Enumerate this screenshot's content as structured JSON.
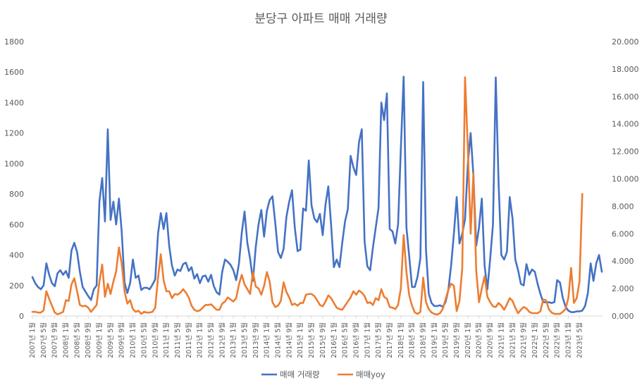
{
  "chart_data": {
    "type": "line",
    "title": "분당구 아파트 매매 거래량",
    "y_left": {
      "min": 0,
      "max": 1800,
      "step": 200,
      "tick_labels": [
        "0",
        "200",
        "400",
        "600",
        "800",
        "1000",
        "1200",
        "1400",
        "1600",
        "1800"
      ]
    },
    "y_right": {
      "min": 0,
      "max": 20,
      "step": 2,
      "tick_labels": [
        "0.000",
        "2.000",
        "4.000",
        "6.000",
        "8.000",
        "10.000",
        "12.000",
        "14.000",
        "16.000",
        "18.000",
        "20.000"
      ]
    },
    "grid": false,
    "legend_position": "bottom",
    "x_tick_labels": [
      "2007년 1월",
      "2007년 5월",
      "2007년 9월",
      "2008년 1월",
      "2008년 5월",
      "2008년 9월",
      "2009년 1월",
      "2009년 5월",
      "2009년 9월",
      "2010년 1월",
      "2010년 5월",
      "2010년 9월",
      "2011년 1월",
      "2011년 5월",
      "2011년 9월",
      "2012년 1월",
      "2012년 5월",
      "2012년 9월",
      "2013년 1월",
      "2013년 5월",
      "2013년 9월",
      "2014년 1월",
      "2014년 5월",
      "2014년 9월",
      "2015년 1월",
      "2015년 5월",
      "2015년 9월",
      "2016년 1월",
      "2016년 5월",
      "2016년 9월",
      "2017년 1월",
      "2017년 5월",
      "2017년 9월",
      "2018년 1월",
      "2018년 5월",
      "2018년 9월",
      "2019년 1월",
      "2019년 5월",
      "2019년 9월",
      "2020년 1월",
      "2020년 5월",
      "2020년 9월",
      "2021년 1월",
      "2021년 5월",
      "2021년 9월",
      "2022년 1월",
      "2022년 5월",
      "2022년 9월",
      "2023년 1월",
      "2023년 5월"
    ],
    "series": [
      {
        "name": "매매 거래량",
        "axis": "left",
        "color": "#4472C4",
        "values": [
          255,
          215,
          190,
          175,
          200,
          345,
          270,
          215,
          195,
          280,
          300,
          270,
          295,
          250,
          430,
          480,
          420,
          290,
          190,
          160,
          130,
          105,
          175,
          200,
          750,
          905,
          620,
          1225,
          630,
          750,
          600,
          770,
          550,
          220,
          150,
          215,
          370,
          250,
          265,
          170,
          185,
          185,
          175,
          205,
          240,
          540,
          675,
          570,
          675,
          460,
          330,
          265,
          305,
          295,
          340,
          350,
          295,
          320,
          245,
          275,
          215,
          260,
          265,
          225,
          270,
          195,
          155,
          140,
          290,
          370,
          355,
          335,
          300,
          235,
          345,
          545,
          685,
          480,
          375,
          230,
          450,
          600,
          695,
          520,
          690,
          760,
          785,
          610,
          420,
          380,
          440,
          650,
          750,
          825,
          580,
          425,
          435,
          705,
          690,
          1020,
          725,
          640,
          615,
          670,
          530,
          730,
          850,
          600,
          320,
          370,
          320,
          480,
          620,
          700,
          1050,
          975,
          925,
          1140,
          1225,
          490,
          325,
          300,
          450,
          580,
          710,
          1400,
          1285,
          1460,
          570,
          555,
          475,
          600,
          1100,
          1570,
          580,
          390,
          190,
          190,
          260,
          380,
          1535,
          435,
          145,
          85,
          65,
          65,
          70,
          60,
          90,
          170,
          330,
          540,
          780,
          475,
          540,
          635,
          1000,
          1200,
          920,
          460,
          580,
          770,
          330,
          175,
          375,
          600,
          1565,
          880,
          400,
          370,
          420,
          780,
          640,
          370,
          300,
          210,
          200,
          340,
          270,
          305,
          290,
          210,
          145,
          90,
          90,
          90,
          85,
          90,
          235,
          220,
          120,
          60,
          35,
          25,
          25,
          30,
          30,
          35,
          65,
          150,
          345,
          230,
          345,
          400,
          290
        ]
      },
      {
        "name": "매매yoy",
        "axis": "right",
        "color": "#ED7D31",
        "values": [
          0.3,
          0.3,
          0.25,
          0.25,
          0.4,
          1.8,
          1.25,
          0.75,
          0.25,
          0.12,
          0.2,
          0.3,
          1.15,
          1.1,
          2.3,
          2.75,
          1.8,
          0.8,
          0.7,
          0.75,
          0.6,
          0.3,
          0.55,
          0.8,
          2.5,
          3.75,
          1.4,
          2.35,
          1.6,
          2.5,
          3.25,
          5.0,
          3.8,
          1.8,
          0.9,
          1.15,
          0.5,
          0.3,
          0.38,
          0.15,
          0.3,
          0.25,
          0.25,
          0.3,
          0.6,
          2.8,
          4.5,
          2.6,
          1.8,
          1.8,
          1.3,
          1.6,
          1.55,
          1.7,
          1.95,
          1.7,
          1.35,
          0.75,
          0.45,
          0.35,
          0.4,
          0.6,
          0.8,
          0.8,
          0.85,
          0.65,
          0.45,
          0.45,
          0.9,
          1.05,
          1.35,
          1.2,
          1.05,
          1.3,
          2.3,
          3.0,
          2.3,
          1.95,
          1.6,
          3.2,
          2.15,
          2.0,
          1.55,
          2.2,
          3.2,
          2.5,
          1.0,
          0.65,
          0.75,
          1.1,
          2.45,
          1.75,
          1.35,
          0.8,
          0.9,
          0.75,
          0.95,
          0.95,
          1.55,
          1.6,
          1.6,
          1.45,
          1.15,
          0.8,
          0.7,
          1.05,
          1.5,
          1.3,
          0.95,
          0.6,
          0.5,
          0.45,
          0.75,
          1.05,
          1.35,
          1.8,
          1.55,
          1.85,
          1.7,
          1.45,
          0.95,
          1.0,
          0.8,
          1.3,
          1.15,
          1.95,
          1.4,
          1.25,
          0.65,
          0.6,
          0.5,
          0.8,
          2.0,
          5.9,
          3.2,
          1.5,
          0.75,
          0.25,
          0.15,
          0.3,
          2.8,
          1.0,
          0.5,
          0.25,
          0.15,
          0.1,
          0.2,
          0.5,
          1.2,
          1.9,
          2.35,
          2.2,
          0.35,
          1.1,
          3.5,
          17.4,
          12.2,
          6.0,
          10.4,
          3.3,
          1.0,
          2.0,
          2.9,
          1.4,
          1.0,
          0.7,
          0.65,
          0.95,
          0.75,
          0.45,
          0.85,
          1.3,
          1.1,
          0.6,
          0.2,
          0.45,
          0.65,
          0.55,
          0.3,
          0.2,
          0.2,
          0.2,
          0.35,
          1.2,
          1.15,
          0.5,
          0.25,
          0.15,
          0.15,
          0.15,
          0.3,
          0.5,
          1.3,
          3.5,
          0.95,
          1.3,
          2.5,
          8.9
        ]
      }
    ]
  }
}
